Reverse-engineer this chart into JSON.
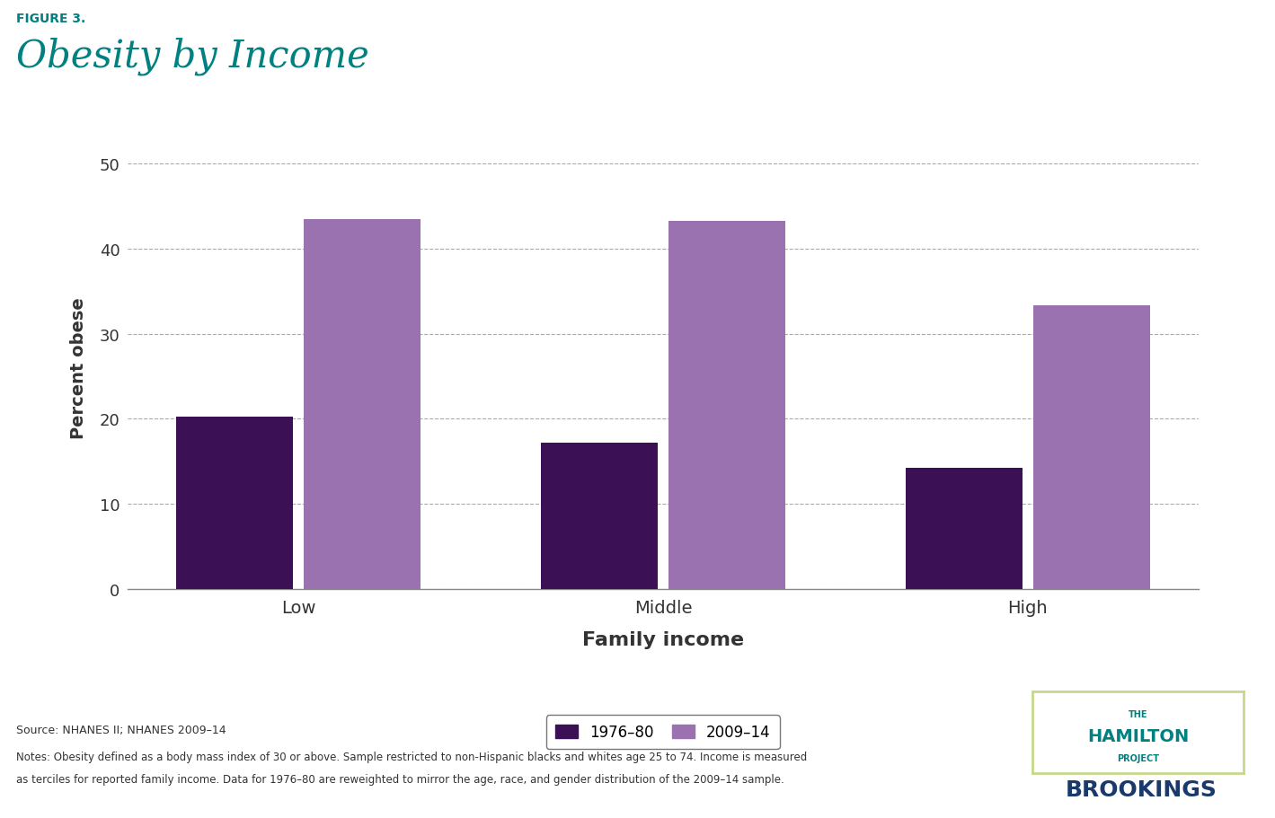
{
  "figure_label": "FIGURE 3.",
  "title": "Obesity by Income",
  "categories": [
    "Low",
    "Middle",
    "High"
  ],
  "series": {
    "1976-80": [
      20.2,
      17.2,
      14.2
    ],
    "2009-14": [
      43.5,
      43.3,
      33.3
    ]
  },
  "colors": {
    "1976-80": "#3b1054",
    "2009-14": "#9b72b0"
  },
  "ylabel": "Percent obese",
  "xlabel": "Family income",
  "yticks": [
    0,
    10,
    20,
    30,
    40,
    50
  ],
  "ylim": [
    0,
    52
  ],
  "bar_width": 0.32,
  "bar_gap": 0.03,
  "figure_label_color": "#008080",
  "title_color": "#008080",
  "source_text": "Source: NHANES II; NHANES 2009–14",
  "notes_line1": "Notes: Obesity defined as a body mass index of 30 or above. Sample restricted to non-Hispanic blacks and whites age 25 to 74. Income is measured",
  "notes_line2": "as terciles for reported family income. Data for 1976–80 are reweighted to mirror the age, race, and gender distribution of the 2009–14 sample.",
  "legend_labels": [
    "1976–80",
    "2009–14"
  ],
  "legend_colors": [
    "#3b1054",
    "#9b72b0"
  ],
  "grid_color": "#aaaaaa",
  "axis_color": "#888888",
  "background_color": "#ffffff",
  "hamilton_color": "#008080",
  "brookings_color": "#1a3a6b",
  "logo_border_color": "#c8d88a"
}
